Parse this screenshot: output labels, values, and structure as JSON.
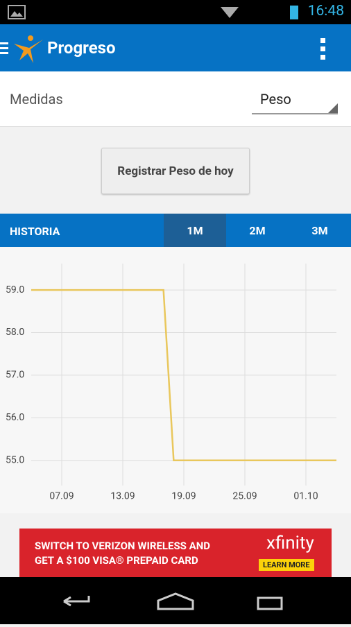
{
  "status_bar": {
    "time": "16:48"
  },
  "app_bar": {
    "title": "Progreso"
  },
  "filter": {
    "label": "Medidas",
    "dropdown": "Peso"
  },
  "button": "Registrar Peso de hoy",
  "tabs": {
    "label": "HISTORIA",
    "items": [
      "1M",
      "2M",
      "3M"
    ],
    "selected": 0
  },
  "chart_data": {
    "type": "line",
    "x": [
      "04.09",
      "17.09",
      "18.09",
      "04.10"
    ],
    "series": [
      {
        "color": "#e9c75c",
        "values": [
          59,
          59,
          55,
          55
        ]
      }
    ],
    "xlim": [
      "04.09",
      "04.10"
    ],
    "xticks": [
      "07.09",
      "13.09",
      "19.09",
      "25.09",
      "01.10"
    ],
    "ylim": [
      54.41,
      59.62
    ],
    "yticks": [
      {
        "value": 55,
        "label": "55.0"
      },
      {
        "value": 56,
        "label": "56.0"
      },
      {
        "value": 57,
        "label": "57.0"
      },
      {
        "value": 58,
        "label": "58.0"
      },
      {
        "value": 59,
        "label": "59.0"
      }
    ],
    "grid": true
  },
  "ad": {
    "line1": "SWITCH TO VERIZON WIRELESS AND",
    "line2": "GET A $100 VISA® PREPAID CARD",
    "brand": "xfinity",
    "cta": "LEARN MORE"
  }
}
